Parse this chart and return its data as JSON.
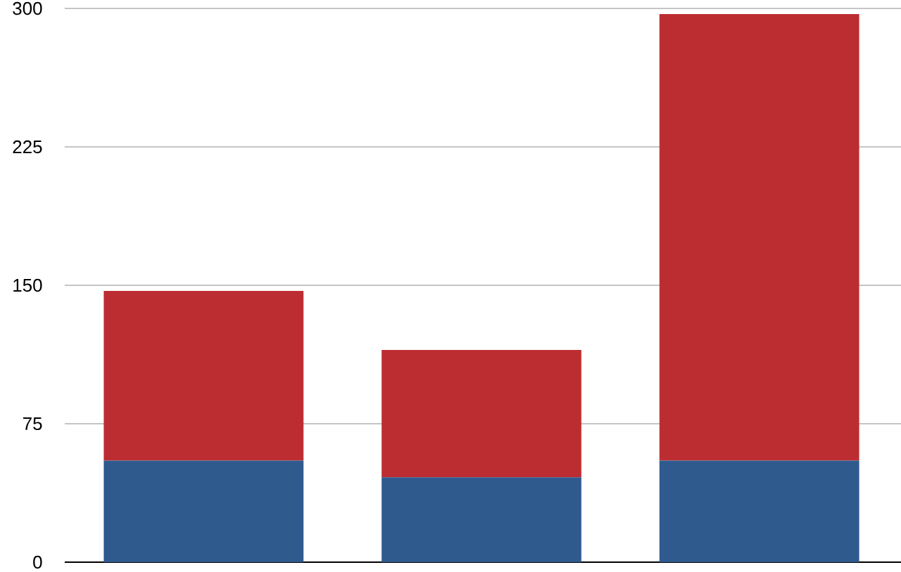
{
  "chart_data": {
    "type": "bar",
    "stacked": true,
    "categories": [
      null,
      null,
      null
    ],
    "series": [
      {
        "color": "#2e5a8e",
        "values": [
          55,
          46,
          55
        ]
      },
      {
        "color": "#bc2d32",
        "values": [
          92,
          69,
          242
        ]
      }
    ],
    "ylim": [
      0,
      300
    ],
    "yticks": [
      0,
      75,
      150,
      225,
      300
    ],
    "grid": "y"
  }
}
